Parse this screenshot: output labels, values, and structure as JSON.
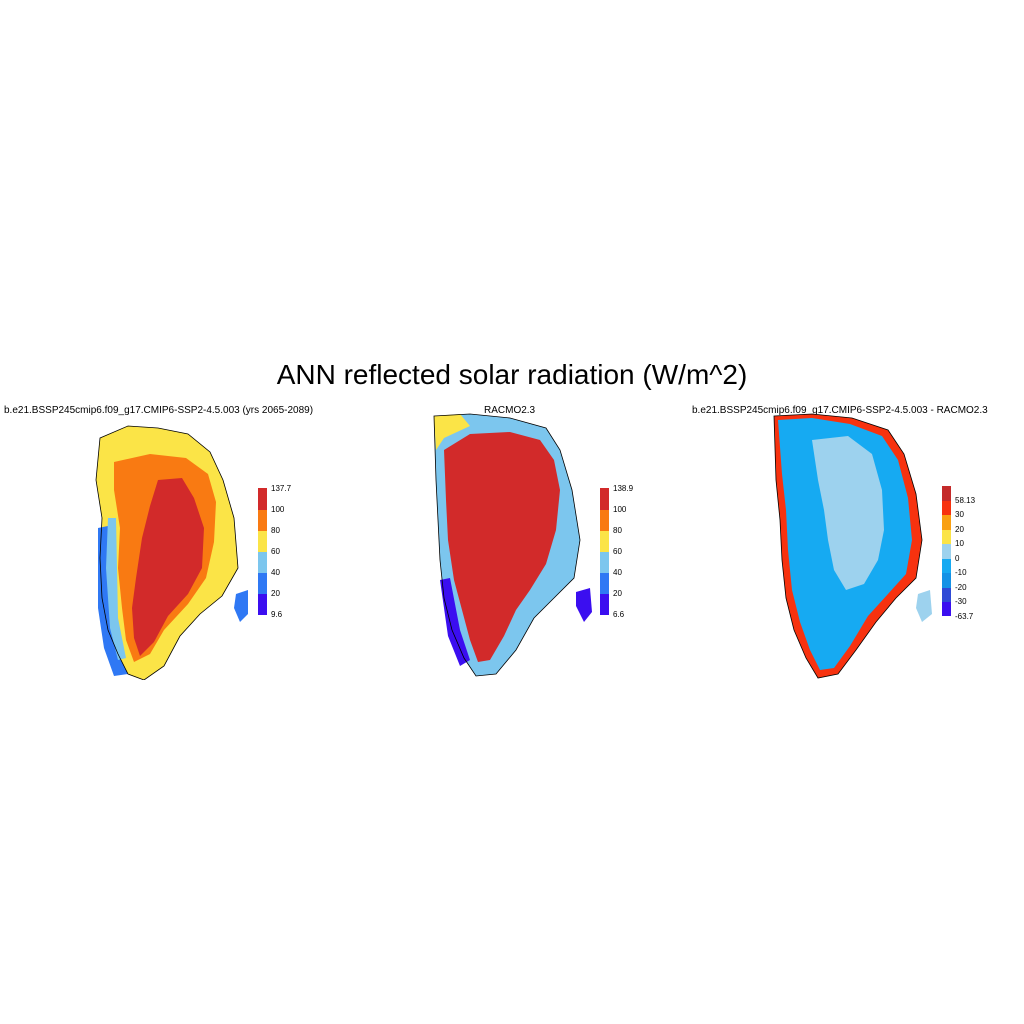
{
  "title": "ANN reflected solar radiation (W/m^2)",
  "panels": [
    {
      "title": "b.e21.BSSP245cmip6.f09_g17.CMIP6-SSP2-4.5.003 (yrs 2065-2089)",
      "legend": {
        "colors": [
          "#3b0ef0",
          "#2f78f4",
          "#7cc6ee",
          "#fbe447",
          "#f97a12",
          "#d22a2a"
        ],
        "labels": [
          "9.6",
          "20",
          "40",
          "60",
          "80",
          "100",
          "137.7"
        ]
      }
    },
    {
      "title": "RACMO2.3",
      "legend": {
        "colors": [
          "#3b0ef0",
          "#2f78f4",
          "#7cc6ee",
          "#fbe447",
          "#f97a12",
          "#d22a2a"
        ],
        "labels": [
          "6.6",
          "20",
          "40",
          "60",
          "80",
          "100",
          "138.9"
        ]
      }
    },
    {
      "title": "b.e21.BSSP245cmip6.f09_g17.CMIP6-SSP2-4.5.003 - RACMO2.3",
      "legend": {
        "colors": [
          "#3b0ef0",
          "#2f4ad6",
          "#1492e6",
          "#16aaf2",
          "#9dd2ee",
          "#fbe447",
          "#f9a012",
          "#f7320f",
          "#c42a2a"
        ],
        "labels": [
          "-63.7",
          "-30",
          "-20",
          "-10",
          "0",
          "10",
          "20",
          "30",
          "58.13"
        ]
      }
    }
  ]
}
